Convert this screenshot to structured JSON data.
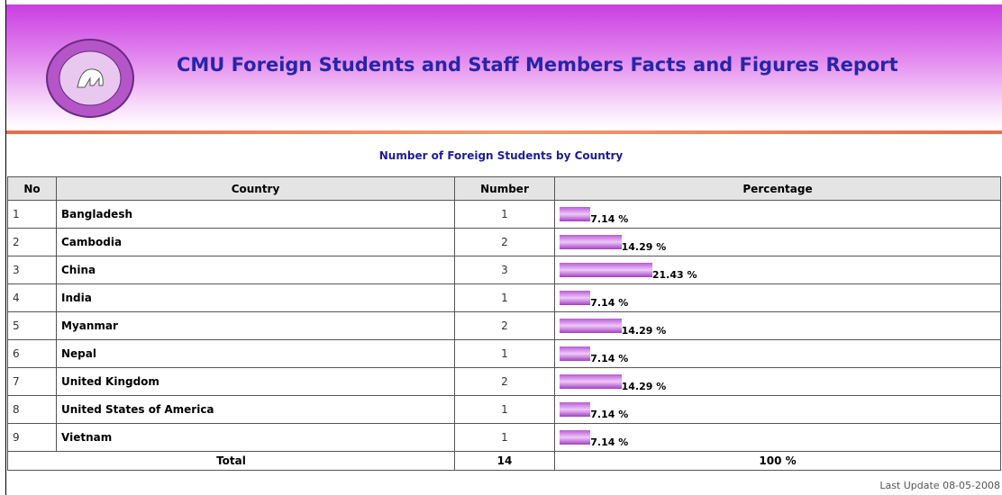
{
  "header": {
    "title": "CMU Foreign Students and Staff Members Facts and Figures Report"
  },
  "table": {
    "title": "Number of Foreign Students by Country",
    "columns": [
      "No",
      "Country",
      "Number",
      "Percentage"
    ],
    "rows": [
      {
        "no": 1,
        "country": "Bangladesh",
        "number": 1,
        "percentage": 7.14,
        "percentage_label": "7.14 %"
      },
      {
        "no": 2,
        "country": "Cambodia",
        "number": 2,
        "percentage": 14.29,
        "percentage_label": "14.29 %"
      },
      {
        "no": 3,
        "country": "China",
        "number": 3,
        "percentage": 21.43,
        "percentage_label": "21.43 %"
      },
      {
        "no": 4,
        "country": "India",
        "number": 1,
        "percentage": 7.14,
        "percentage_label": "7.14 %"
      },
      {
        "no": 5,
        "country": "Myanmar",
        "number": 2,
        "percentage": 14.29,
        "percentage_label": "14.29 %"
      },
      {
        "no": 6,
        "country": "Nepal",
        "number": 1,
        "percentage": 7.14,
        "percentage_label": "7.14 %"
      },
      {
        "no": 7,
        "country": "United Kingdom",
        "number": 2,
        "percentage": 14.29,
        "percentage_label": "14.29 %"
      },
      {
        "no": 8,
        "country": "United States of America",
        "number": 1,
        "percentage": 7.14,
        "percentage_label": "7.14 %"
      },
      {
        "no": 9,
        "country": "Vietnam",
        "number": 1,
        "percentage": 7.14,
        "percentage_label": "7.14 %"
      }
    ],
    "total": {
      "label": "Total",
      "number": 14,
      "percentage": "100 %"
    }
  },
  "footer": {
    "last_update": "Last Update 08-05-2008"
  }
}
